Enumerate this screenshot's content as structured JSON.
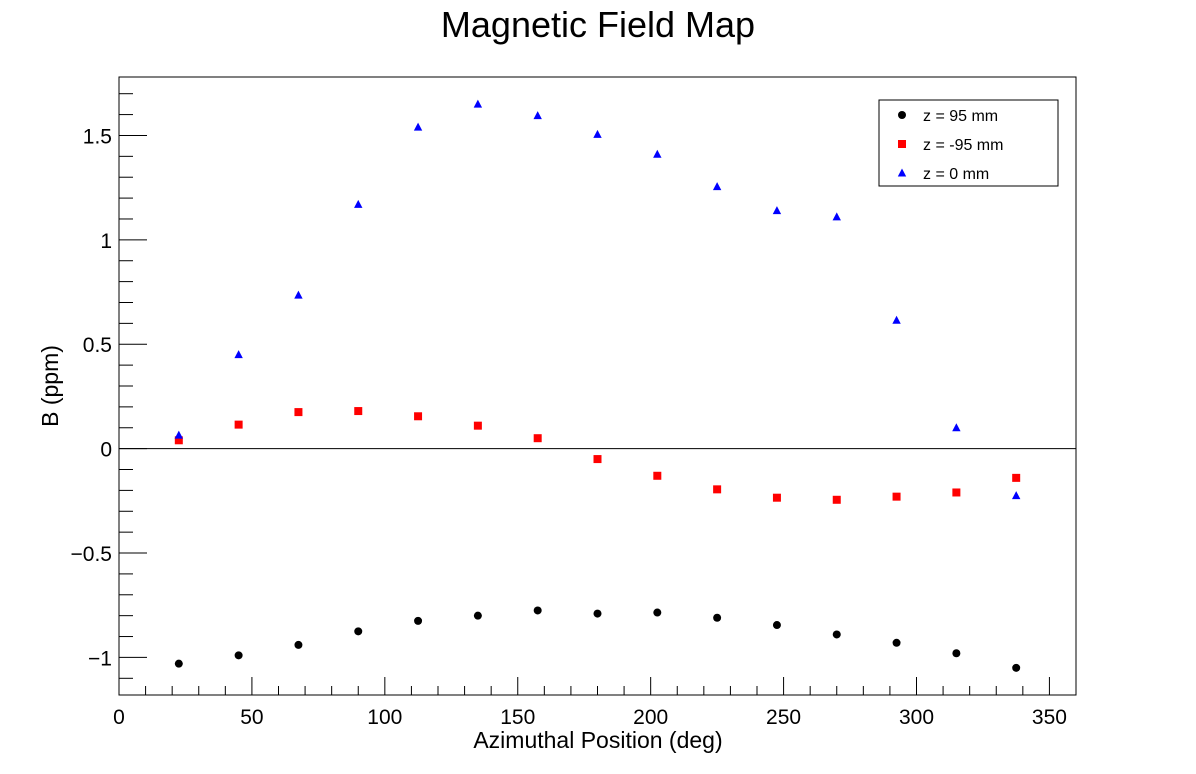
{
  "chart_data": {
    "type": "scatter",
    "title": "Magnetic Field Map",
    "xlabel": "Azimuthal Position (deg)",
    "ylabel": "B (ppm)",
    "xlim": [
      0,
      360
    ],
    "ylim": [
      -1.18,
      1.78
    ],
    "x_ticks": [
      0,
      50,
      100,
      150,
      200,
      250,
      300,
      350
    ],
    "y_ticks": [
      -1,
      -0.5,
      0,
      0.5,
      1,
      1.5
    ],
    "x_tick_labels": [
      "0",
      "50",
      "100",
      "150",
      "200",
      "250",
      "300",
      "350"
    ],
    "y_tick_labels": [
      "−1",
      "−0.5",
      "0",
      "0.5",
      "1",
      "1.5"
    ],
    "zero_line": true,
    "grid": false,
    "legend_position": "top-right",
    "x": [
      22.5,
      45,
      67.5,
      90,
      112.5,
      135,
      157.5,
      180,
      202.5,
      225,
      247.5,
      270,
      292.5,
      315,
      337.5
    ],
    "series": [
      {
        "name": "z = 95 mm",
        "marker": "circle",
        "color": "#000000",
        "values": [
          -1.03,
          -0.99,
          -0.94,
          -0.875,
          -0.825,
          -0.8,
          -0.775,
          -0.79,
          -0.785,
          -0.81,
          -0.845,
          -0.89,
          -0.93,
          -0.98,
          -1.05
        ]
      },
      {
        "name": "z = -95 mm",
        "marker": "square",
        "color": "#ff0000",
        "values": [
          0.04,
          0.115,
          0.175,
          0.18,
          0.155,
          0.11,
          0.05,
          -0.05,
          -0.13,
          -0.195,
          -0.235,
          -0.245,
          -0.23,
          -0.21,
          -0.14
        ]
      },
      {
        "name": "z = 0 mm",
        "marker": "triangle",
        "color": "#0000ff",
        "values": [
          0.065,
          0.45,
          0.735,
          1.17,
          1.54,
          1.65,
          1.595,
          1.505,
          1.41,
          1.255,
          1.14,
          1.11,
          0.615,
          0.1,
          -0.225
        ]
      }
    ]
  }
}
